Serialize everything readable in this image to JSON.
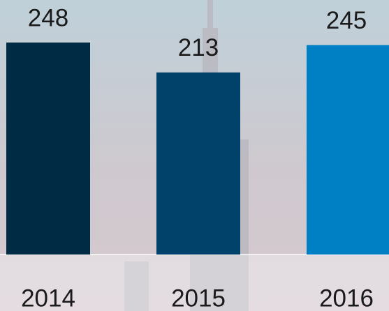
{
  "chart_data": {
    "type": "bar",
    "categories": [
      "2014",
      "2015",
      "2016"
    ],
    "values": [
      248,
      213,
      245
    ],
    "colors": [
      "#002b44",
      "#00426a",
      "#0080c4"
    ]
  }
}
